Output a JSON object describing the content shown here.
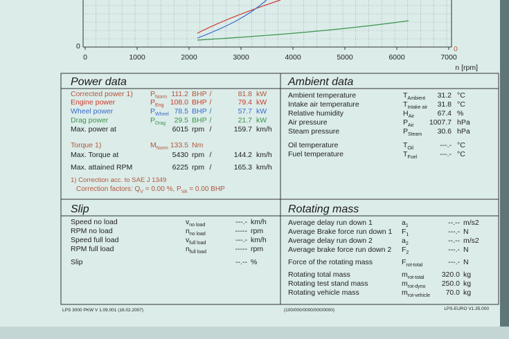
{
  "chart": {
    "xlim": [
      0,
      7000
    ],
    "xticks": [
      0,
      1000,
      2000,
      3000,
      4000,
      5000,
      6000,
      7000
    ],
    "xlabel": "n [rpm]",
    "y_left_zero": "0",
    "y_right_zero": "0"
  },
  "power_data": {
    "title": "Power data",
    "rows": [
      {
        "label": "Corrected power 1)",
        "sym": "P",
        "sub": "Norm",
        "v1": "111.2",
        "u1": "BHP",
        "sep": "/",
        "v2": "81.8",
        "u2": "kW",
        "color": "#b4563c"
      },
      {
        "label": "Engine power",
        "sym": "P",
        "sub": "Eng",
        "v1": "108.0",
        "u1": "BHP",
        "sep": "/",
        "v2": "79.4",
        "u2": "kW",
        "color": "#cc3a2c"
      },
      {
        "label": "Wheel power",
        "sym": "P",
        "sub": "Wheel",
        "v1": "78.5",
        "u1": "BHP",
        "sep": "/",
        "v2": "57.7",
        "u2": "kW",
        "color": "#3a6bcc"
      },
      {
        "label": "Drag power",
        "sym": "P",
        "sub": "Drag",
        "v1": "29.5",
        "u1": "BHP",
        "sep": "/",
        "v2": "21.7",
        "u2": "kW",
        "color": "#3a944a"
      },
      {
        "label": "Max. power at",
        "v1": "6015",
        "u1": "rpm",
        "sep": "/",
        "v2": "159.7",
        "u2": "km/h",
        "color": "#222222"
      },
      {
        "label": "Torque 1)",
        "sym": "M",
        "sub": "Norm",
        "v1": "133.5",
        "u1": "Nm",
        "color": "#b4563c"
      },
      {
        "label": "Max. Torque at",
        "v1": "5430",
        "u1": "rpm",
        "sep": "/",
        "v2": "144.2",
        "u2": "km/h",
        "color": "#222222"
      },
      {
        "label": "Max. attained RPM",
        "v1": "6225",
        "u1": "rpm",
        "sep": "/",
        "v2": "165.3",
        "u2": "km/h",
        "color": "#222222"
      }
    ],
    "note1": "1) Correction acc. to SAE J 1349",
    "note2": [
      "Correction factors: Q",
      "V",
      " =  0.00 %, P",
      "VA",
      " =  0.00 BHP"
    ]
  },
  "ambient_data": {
    "title": "Ambient data",
    "rows": [
      {
        "label": "Ambient temperature",
        "sym": "T",
        "sub": "Ambient",
        "v": "31.2",
        "u": "°C"
      },
      {
        "label": "Intake air temperature",
        "sym": "T",
        "sub": "Intake air",
        "v": "31.8",
        "u": "°C"
      },
      {
        "label": "Relative humidity",
        "sym": "H",
        "sub": "Air",
        "v": "67.4",
        "u": "%"
      },
      {
        "label": "Air pressure",
        "sym": "P",
        "sub": "Air",
        "v": "1007.7",
        "u": "hPa"
      },
      {
        "label": "Steam pressure",
        "sym": "P",
        "sub": "Steam",
        "v": "30.6",
        "u": "hPa"
      },
      {
        "label": "Oil temperature",
        "sym": "T",
        "sub": "Oil",
        "v": "---.-",
        "u": "°C"
      },
      {
        "label": "Fuel temperature",
        "sym": "T",
        "sub": "Fuel",
        "v": "---.-",
        "u": "°C"
      }
    ]
  },
  "slip": {
    "title": "Slip",
    "rows": [
      {
        "label": "Speed no load",
        "sym": "v",
        "sub": "no load",
        "v": "---.-",
        "u": "km/h"
      },
      {
        "label": "RPM no load",
        "sym": "n",
        "sub": "no load",
        "v": "-----",
        "u": "rpm"
      },
      {
        "label": "Speed full load",
        "sym": "v",
        "sub": "full load",
        "v": "---.-",
        "u": "km/h"
      },
      {
        "label": "RPM full load",
        "sym": "n",
        "sub": "full load",
        "v": "-----",
        "u": "rpm"
      },
      {
        "label": "Slip",
        "v": "--.--",
        "u": "%"
      }
    ]
  },
  "rotating_mass": {
    "title": "Rotating mass",
    "rows": [
      {
        "label": "Average delay run down 1",
        "sym": "a",
        "sub": "1",
        "v": "--.--",
        "u": "m/s2"
      },
      {
        "label": "Average Brake force run down 1",
        "sym": "F",
        "sub": "1",
        "v": "---.-",
        "u": "N"
      },
      {
        "label": "Average delay run down 2",
        "sym": "a",
        "sub": "2",
        "v": "--.--",
        "u": "m/s2"
      },
      {
        "label": "Average brake force run down 2",
        "sym": "F",
        "sub": "2",
        "v": "---.-",
        "u": "N"
      },
      {
        "label": "Force of the rotating mass",
        "sym": "F",
        "sub": "rot-total",
        "v": "---.-",
        "u": "N"
      },
      {
        "label": "Rotating total mass",
        "sym": "m",
        "sub": "rot-total",
        "v": "320.0",
        "u": "kg"
      },
      {
        "label": "Rotating test stand mass",
        "sym": "m",
        "sub": "rot-dyno",
        "v": "250.0",
        "u": "kg"
      },
      {
        "label": "Rotating vehicle mass",
        "sym": "m",
        "sub": "rot-vehicle",
        "v": "70.0",
        "u": "kg"
      }
    ]
  },
  "footer": {
    "left": "LPS 3000 PKW V 1.09.001 (16.02.2007)",
    "center": "(100/000/0000/000/0000)",
    "right": "LPS-EURO V1.35.000"
  }
}
